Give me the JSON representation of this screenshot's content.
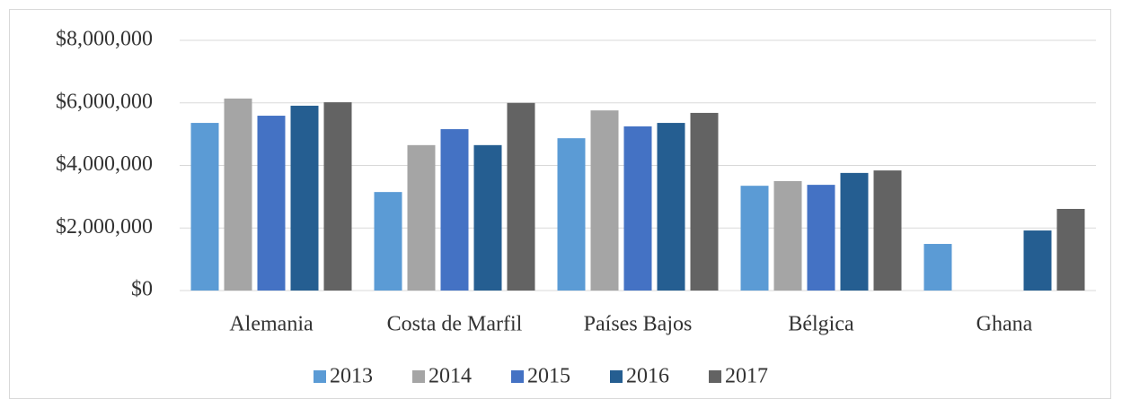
{
  "chart_data": {
    "type": "bar",
    "categories": [
      "Alemania",
      "Costa de Marfil",
      "Países Bajos",
      "Bélgica",
      "Ghana"
    ],
    "series": [
      {
        "name": "2013",
        "color": "#5b9bd5",
        "values": [
          5360000,
          3150000,
          4870000,
          3350000,
          1490000
        ]
      },
      {
        "name": "2014",
        "color": "#a5a5a5",
        "values": [
          6140000,
          4650000,
          5760000,
          3500000,
          0
        ]
      },
      {
        "name": "2015",
        "color": "#4472c4",
        "values": [
          5590000,
          5160000,
          5250000,
          3380000,
          0
        ]
      },
      {
        "name": "2016",
        "color": "#255e91",
        "values": [
          5910000,
          4650000,
          5360000,
          3760000,
          1920000
        ]
      },
      {
        "name": "2017",
        "color": "#636363",
        "values": [
          6020000,
          6000000,
          5680000,
          3840000,
          2610000
        ]
      }
    ],
    "ylim": [
      0,
      8000000
    ],
    "yticks": [
      {
        "value": 0,
        "label": "$0"
      },
      {
        "value": 2000000,
        "label": "$2,000,000"
      },
      {
        "value": 4000000,
        "label": "$4,000,000"
      },
      {
        "value": 6000000,
        "label": "$6,000,000"
      },
      {
        "value": 8000000,
        "label": "$8,000,000"
      }
    ],
    "grid": true,
    "legend": "bottom"
  }
}
